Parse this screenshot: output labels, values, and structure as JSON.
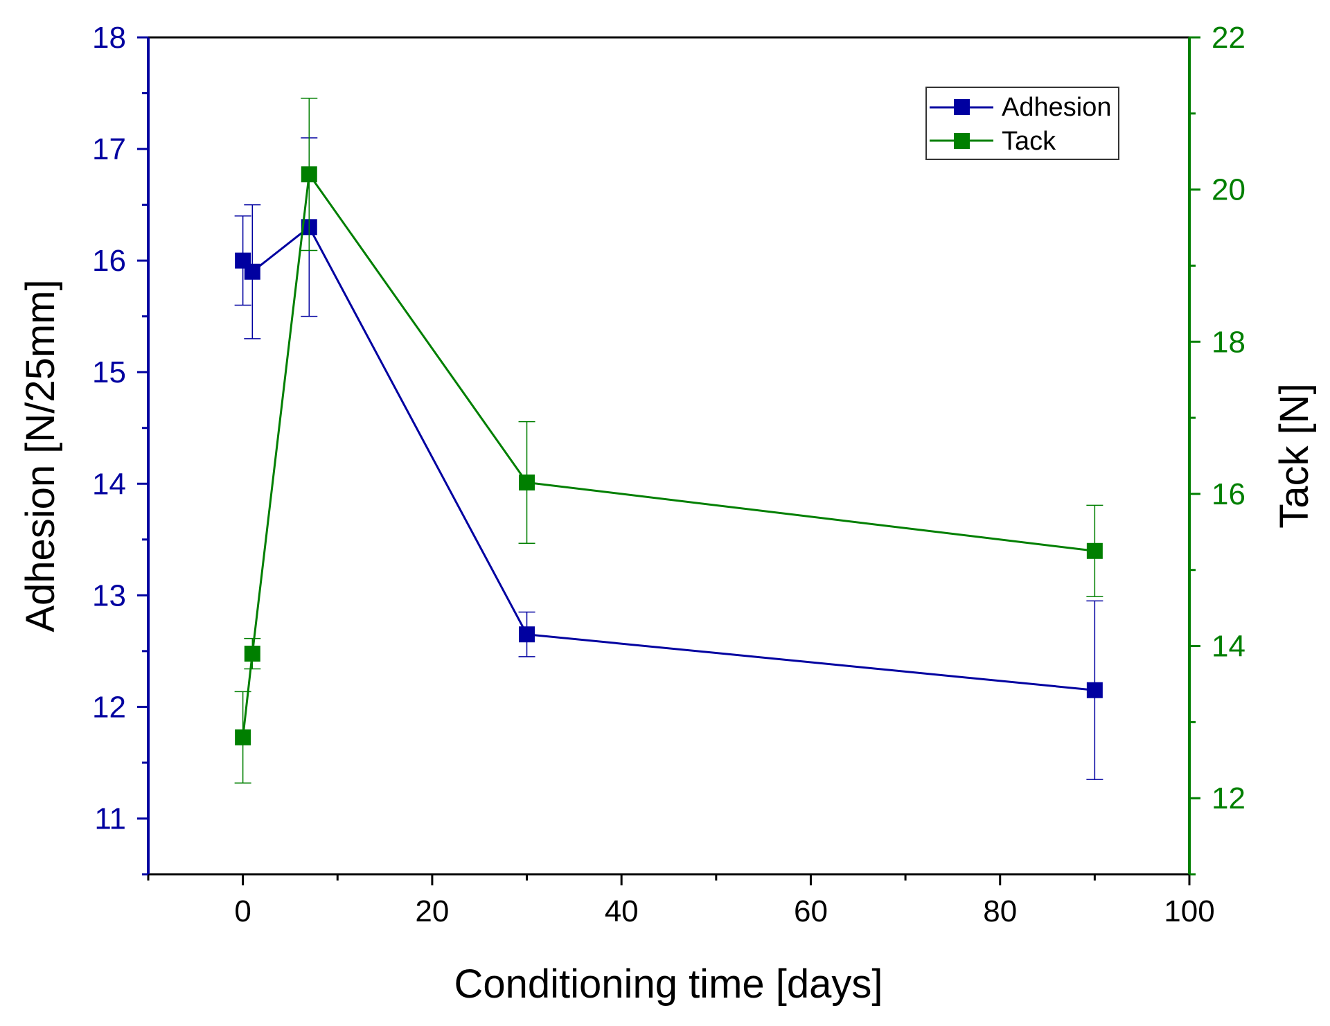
{
  "chart_data": {
    "type": "line",
    "xlabel": "Conditioning time [days]",
    "ylabel_left": "Adhesion [N/25mm]",
    "ylabel_right": "Tack [N]",
    "xlim": [
      -10,
      100
    ],
    "ylim_left": [
      10.5,
      18
    ],
    "ylim_right": [
      11,
      22
    ],
    "x_ticks": [
      0,
      20,
      40,
      60,
      80,
      100
    ],
    "y_ticks_left": [
      11,
      12,
      13,
      14,
      15,
      16,
      17,
      18
    ],
    "y_ticks_right": [
      12,
      14,
      16,
      18,
      20,
      22
    ],
    "grid": false,
    "legend_position": "top-right",
    "series": [
      {
        "name": "Adhesion",
        "axis": "left",
        "color": "#0000a0",
        "x": [
          0,
          1,
          7,
          30,
          90
        ],
        "y": [
          16.0,
          15.9,
          16.3,
          12.65,
          12.15
        ],
        "error": [
          0.4,
          0.6,
          0.8,
          0.2,
          0.8
        ]
      },
      {
        "name": "Tack",
        "axis": "right",
        "color": "#007f00",
        "x": [
          0,
          1,
          7,
          30,
          90
        ],
        "y": [
          12.8,
          13.9,
          20.2,
          16.15,
          15.25
        ],
        "error": [
          0.6,
          0.2,
          1.0,
          0.8,
          0.6
        ]
      }
    ]
  }
}
